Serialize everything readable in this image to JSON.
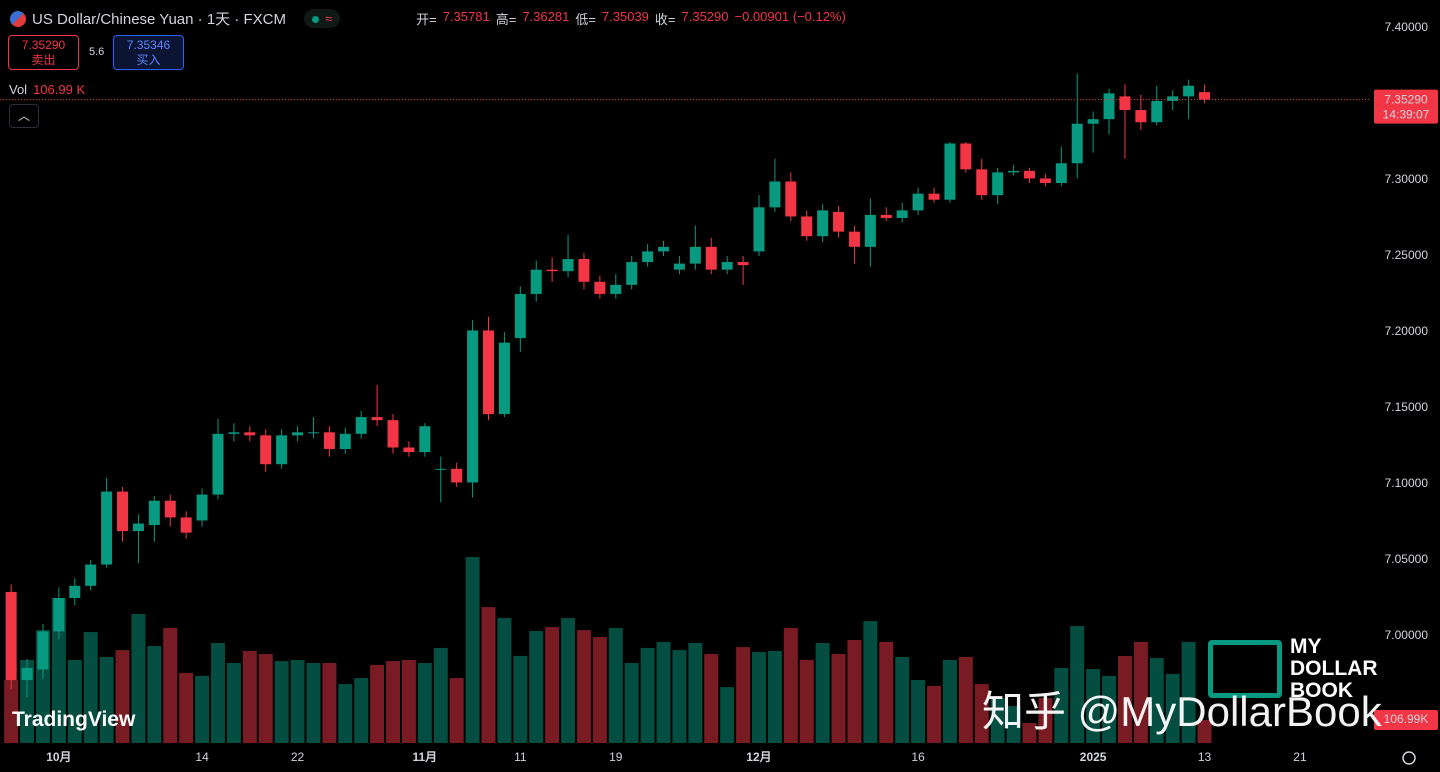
{
  "chart_data": {
    "type": "candlestick",
    "ui": {
      "symbol": "US Dollar/Chinese Yuan · 1天 · FXCM",
      "legend": [
        {
          "key": "开=",
          "value": "7.35781"
        },
        {
          "key": "高=",
          "value": "7.36281"
        },
        {
          "key": "低=",
          "value": "7.35039"
        },
        {
          "key": "收=",
          "value": "7.35290"
        }
      ],
      "change": "−0.00901 (−0.12%)",
      "sell": {
        "price": "7.35290",
        "label": "卖出"
      },
      "spread": "5.6",
      "buy": {
        "price": "7.35346",
        "label": "买入"
      },
      "volume_title": "Vol",
      "volume_value_label": "106.99 K",
      "volume_axis_label": "106.99K",
      "countdown": "14:39:07",
      "brand": "TradingView",
      "watermark": "知乎 @MyDollarBook",
      "logo": [
        "MY",
        "DOLLAR",
        "BOOK"
      ]
    },
    "up_color": "#089981",
    "down_color": "#f23645",
    "grid": false,
    "xlim": [
      -0.7,
      85.4
    ],
    "xticks": [
      {
        "value": 3,
        "label": "10月"
      },
      {
        "value": 12,
        "label": "14"
      },
      {
        "value": 18,
        "label": "22"
      },
      {
        "value": 26,
        "label": "11月"
      },
      {
        "value": 32,
        "label": "11"
      },
      {
        "value": 38,
        "label": "19"
      },
      {
        "value": 47,
        "label": "12月"
      },
      {
        "value": 57,
        "label": "16"
      },
      {
        "value": 68,
        "label": "2025"
      },
      {
        "value": 75,
        "label": "13"
      },
      {
        "value": 81,
        "label": "21"
      }
    ],
    "ylim": [
      6.9296,
      7.4184
    ],
    "yticks": [
      {
        "value": 7.4,
        "label": "7.40000"
      },
      {
        "value": 7.3,
        "label": "7.30000"
      },
      {
        "value": 7.25,
        "label": "7.25000"
      },
      {
        "value": 7.2,
        "label": "7.20000"
      },
      {
        "value": 7.15,
        "label": "7.15000"
      },
      {
        "value": 7.1,
        "label": "7.10000"
      },
      {
        "value": 7.05,
        "label": "7.05000"
      },
      {
        "value": 7.0,
        "label": "7.00000"
      }
    ],
    "y2lim": [
      0,
      3455
    ],
    "last_price": {
      "value": 7.3529,
      "label": "7.35290"
    },
    "open": [
      7.029,
      6.971,
      6.978,
      7.003,
      7.025,
      7.033,
      7.047,
      7.095,
      7.069,
      7.073,
      7.089,
      7.078,
      7.076,
      7.093,
      7.133,
      7.134,
      7.132,
      7.113,
      7.132,
      7.134,
      7.134,
      7.123,
      7.133,
      7.144,
      7.142,
      7.124,
      7.121,
      7.11,
      7.11,
      7.101,
      7.201,
      7.146,
      7.196,
      7.225,
      7.241,
      7.24,
      7.248,
      7.233,
      7.225,
      7.231,
      7.246,
      7.253,
      7.241,
      7.245,
      7.256,
      7.241,
      7.246,
      7.253,
      7.282,
      7.299,
      7.276,
      7.263,
      7.279,
      7.266,
      7.256,
      7.277,
      7.275,
      7.28,
      7.291,
      7.287,
      7.324,
      7.307,
      7.29,
      7.305,
      7.306,
      7.301,
      7.298,
      7.311,
      7.337,
      7.34,
      7.355,
      7.346,
      7.338,
      7.352,
      7.355,
      7.35781
    ],
    "high": [
      7.034,
      6.985,
      7.008,
      7.032,
      7.038,
      7.05,
      7.104,
      7.098,
      7.08,
      7.092,
      7.093,
      7.082,
      7.097,
      7.143,
      7.14,
      7.138,
      7.136,
      7.136,
      7.138,
      7.144,
      7.138,
      7.137,
      7.148,
      7.165,
      7.146,
      7.128,
      7.14,
      7.118,
      7.114,
      7.208,
      7.21,
      7.2,
      7.23,
      7.247,
      7.249,
      7.264,
      7.252,
      7.237,
      7.238,
      7.25,
      7.258,
      7.26,
      7.25,
      7.27,
      7.262,
      7.25,
      7.25,
      7.29,
      7.314,
      7.305,
      7.28,
      7.284,
      7.283,
      7.27,
      7.288,
      7.282,
      7.285,
      7.295,
      7.295,
      7.325,
      7.325,
      7.314,
      7.308,
      7.31,
      7.308,
      7.304,
      7.322,
      7.37,
      7.345,
      7.36,
      7.363,
      7.356,
      7.362,
      7.359,
      7.366,
      7.36281
    ],
    "low": [
      6.965,
      6.96,
      6.972,
      6.998,
      7.02,
      7.03,
      7.045,
      7.062,
      7.048,
      7.062,
      7.072,
      7.064,
      7.072,
      7.09,
      7.128,
      7.128,
      7.108,
      7.11,
      7.128,
      7.13,
      7.118,
      7.12,
      7.13,
      7.138,
      7.12,
      7.118,
      7.118,
      7.088,
      7.098,
      7.091,
      7.142,
      7.144,
      7.187,
      7.22,
      7.233,
      7.236,
      7.228,
      7.222,
      7.222,
      7.228,
      7.243,
      7.25,
      7.238,
      7.241,
      7.238,
      7.238,
      7.231,
      7.25,
      7.279,
      7.273,
      7.26,
      7.259,
      7.262,
      7.245,
      7.243,
      7.273,
      7.272,
      7.277,
      7.285,
      7.285,
      7.305,
      7.287,
      7.284,
      7.303,
      7.298,
      7.296,
      7.296,
      7.301,
      7.318,
      7.33,
      7.314,
      7.333,
      7.336,
      7.346,
      7.34,
      7.35039
    ],
    "close": [
      6.971,
      6.979,
      7.003,
      7.025,
      7.033,
      7.047,
      7.095,
      7.069,
      7.074,
      7.089,
      7.078,
      7.068,
      7.093,
      7.133,
      7.134,
      7.132,
      7.113,
      7.132,
      7.134,
      7.134,
      7.123,
      7.133,
      7.144,
      7.142,
      7.124,
      7.121,
      7.138,
      7.11,
      7.101,
      7.201,
      7.146,
      7.193,
      7.225,
      7.241,
      7.24,
      7.248,
      7.233,
      7.225,
      7.231,
      7.246,
      7.253,
      7.256,
      7.245,
      7.256,
      7.241,
      7.246,
      7.244,
      7.282,
      7.299,
      7.276,
      7.263,
      7.28,
      7.266,
      7.256,
      7.277,
      7.275,
      7.28,
      7.291,
      7.287,
      7.324,
      7.307,
      7.29,
      7.305,
      7.306,
      7.301,
      7.298,
      7.311,
      7.337,
      7.34,
      7.357,
      7.346,
      7.338,
      7.352,
      7.355,
      7.362,
      7.3529
    ],
    "volume": [
      293,
      386,
      525,
      674,
      386,
      516,
      400,
      432,
      600,
      451,
      535,
      326,
      312,
      465,
      372,
      428,
      414,
      381,
      386,
      372,
      372,
      274,
      302,
      363,
      381,
      386,
      372,
      442,
      302,
      865,
      632,
      581,
      405,
      521,
      539,
      581,
      525,
      493,
      535,
      372,
      442,
      470,
      432,
      465,
      414,
      260,
      446,
      423,
      428,
      535,
      386,
      465,
      414,
      479,
      567,
      470,
      400,
      293,
      265,
      386,
      400,
      274,
      209,
      172,
      93,
      209,
      349,
      544,
      344,
      312,
      405,
      470,
      395,
      321,
      470,
      106.99
    ],
    "volume_axis": "y2"
  }
}
